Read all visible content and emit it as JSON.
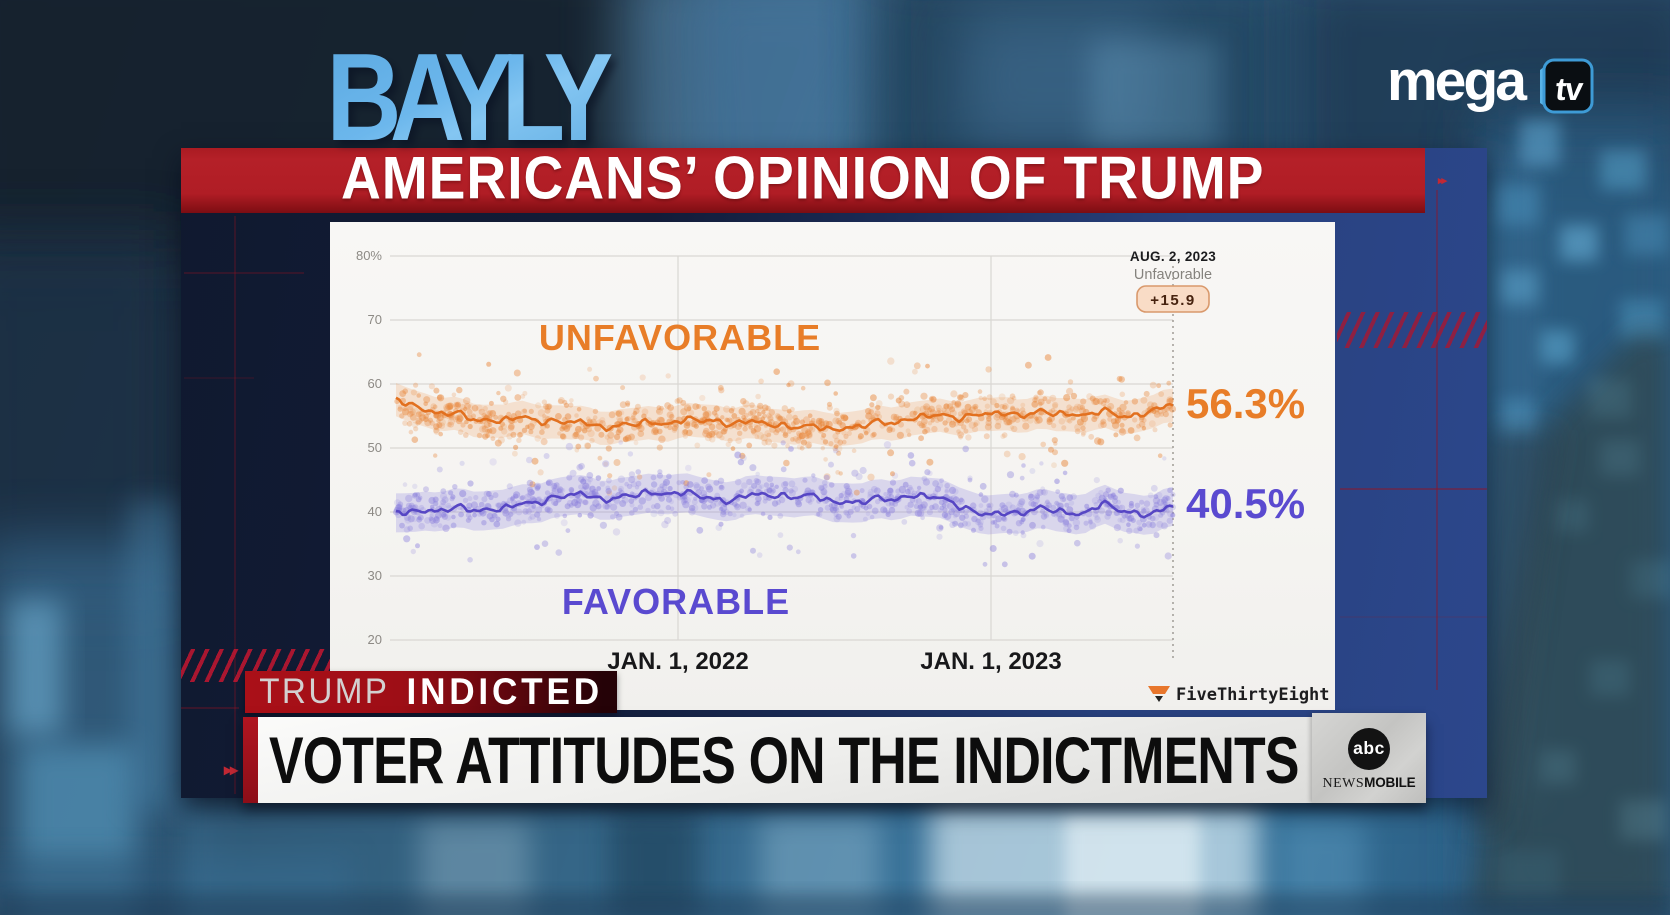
{
  "show_logo": "BAYLY",
  "channel_logo": {
    "word": "mega",
    "tv": "tv"
  },
  "title_banner": "AMERICANS’ OPINION OF TRUMP",
  "ticker_tag": {
    "word1": "TRUMP",
    "word2": "INDICTED"
  },
  "lower_banner": {
    "headline": "VOTER ATTITUDES ON THE INDICTMENTS"
  },
  "abc_bug": {
    "abc": "abc",
    "news": "NEWS",
    "mobile": "MOBILE"
  },
  "chart_data": {
    "type": "scatter",
    "source": "FiveThirtyEight",
    "title_annotation": {
      "date": "AUG. 2, 2023",
      "series": "Unfavorable",
      "spread": "+15.9"
    },
    "x_range": [
      "2021-02-06",
      "2023-08-02"
    ],
    "x_tick_labels": [
      "JAN. 1, 2022",
      "JAN. 1, 2023"
    ],
    "x_tick_positions": [
      0.363,
      0.766
    ],
    "ylim": [
      20,
      80
    ],
    "y_ticks": [
      80,
      70,
      60,
      50,
      40,
      30,
      20
    ],
    "y_tick_labels": [
      "80%",
      "70",
      "60",
      "50",
      "40",
      "30",
      "20"
    ],
    "grid": true,
    "series": [
      {
        "name": "UNFAVORABLE",
        "color": "#e2701f",
        "dot_color": "#e8863a",
        "band_color": "rgba(238,150,80,0.22)",
        "label_color": "#e87d28",
        "final_label": "56.3%",
        "final_value": 56.3,
        "anchors": [
          [
            0.0,
            57.2
          ],
          [
            0.041,
            55.8
          ],
          [
            0.103,
            54.7
          ],
          [
            0.165,
            54.4
          ],
          [
            0.227,
            53.9
          ],
          [
            0.289,
            53.6
          ],
          [
            0.35,
            53.9
          ],
          [
            0.412,
            54.4
          ],
          [
            0.468,
            53.9
          ],
          [
            0.536,
            52.9
          ],
          [
            0.598,
            53.6
          ],
          [
            0.66,
            54.4
          ],
          [
            0.722,
            55.1
          ],
          [
            0.784,
            55.5
          ],
          [
            0.846,
            55.1
          ],
          [
            0.908,
            55.7
          ],
          [
            0.944,
            55.1
          ],
          [
            1.0,
            56.3
          ]
        ]
      },
      {
        "name": "FAVORABLE",
        "color": "#5646c4",
        "dot_color": "#8b80dc",
        "band_color": "rgba(140,128,224,0.26)",
        "label_color": "#5a4ad0",
        "final_label": "40.5%",
        "final_value": 40.5,
        "anchors": [
          [
            0.0,
            39.5
          ],
          [
            0.041,
            40.2
          ],
          [
            0.103,
            40.6
          ],
          [
            0.165,
            40.9
          ],
          [
            0.196,
            42.0
          ],
          [
            0.227,
            42.6
          ],
          [
            0.289,
            42.4
          ],
          [
            0.35,
            43.0
          ],
          [
            0.412,
            42.1
          ],
          [
            0.474,
            42.7
          ],
          [
            0.536,
            42.1
          ],
          [
            0.598,
            41.7
          ],
          [
            0.66,
            42.4
          ],
          [
            0.722,
            41.6
          ],
          [
            0.753,
            39.6
          ],
          [
            0.815,
            40.2
          ],
          [
            0.877,
            39.8
          ],
          [
            0.908,
            41.2
          ],
          [
            0.97,
            39.5
          ],
          [
            1.0,
            40.5
          ]
        ]
      }
    ]
  }
}
